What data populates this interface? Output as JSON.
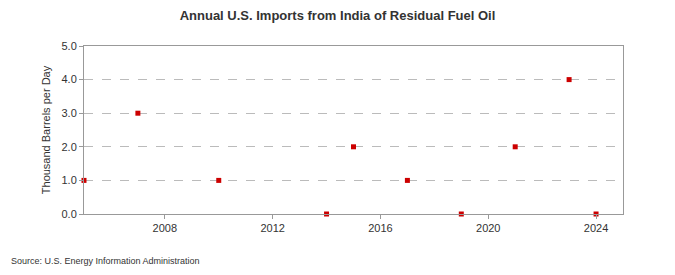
{
  "chart_data": {
    "type": "scatter",
    "title": "Annual U.S. Imports from India of Residual Fuel Oil",
    "y_label": "Thousand Barrels per Day",
    "source": "Source: U.S. Energy Information Administration",
    "x": [
      2005,
      2007,
      2010,
      2014,
      2015,
      2017,
      2019,
      2021,
      2023,
      2024
    ],
    "values": [
      1.0,
      3.0,
      1.0,
      0.0,
      2.0,
      1.0,
      0.0,
      2.0,
      4.0,
      0.0
    ],
    "color": "#cc0000",
    "marker": "square",
    "xlim": [
      2005,
      2025
    ],
    "xticks": [
      2008,
      2012,
      2016,
      2020,
      2024
    ],
    "ylim": [
      0,
      5
    ],
    "yticks": [
      {
        "value": 0,
        "label": "0.0"
      },
      {
        "value": 1,
        "label": "1.0"
      },
      {
        "value": 2,
        "label": "2.0"
      },
      {
        "value": 3,
        "label": "3.0"
      },
      {
        "value": 4,
        "label": "4.0"
      },
      {
        "value": 5,
        "label": "5.0"
      }
    ],
    "grid": true
  }
}
